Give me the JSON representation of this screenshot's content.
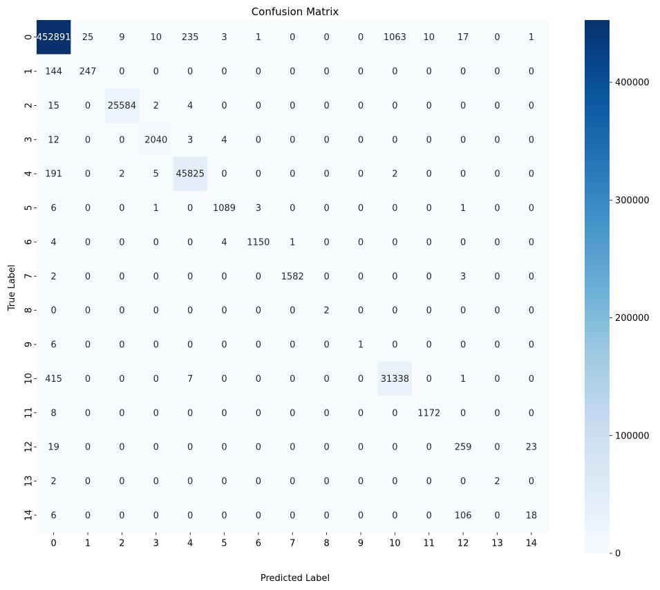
{
  "chart_data": {
    "type": "heatmap",
    "title": "Confusion Matrix",
    "xlabel": "Predicted Label",
    "ylabel": "True Label",
    "x_categories": [
      "0",
      "1",
      "2",
      "3",
      "4",
      "5",
      "6",
      "7",
      "8",
      "9",
      "10",
      "11",
      "12",
      "13",
      "14"
    ],
    "y_categories": [
      "0",
      "1",
      "2",
      "3",
      "4",
      "5",
      "6",
      "7",
      "8",
      "9",
      "10",
      "11",
      "12",
      "13",
      "14"
    ],
    "matrix": [
      [
        452891,
        25,
        9,
        10,
        235,
        3,
        1,
        0,
        0,
        0,
        1063,
        10,
        17,
        0,
        1
      ],
      [
        144,
        247,
        0,
        0,
        0,
        0,
        0,
        0,
        0,
        0,
        0,
        0,
        0,
        0,
        0
      ],
      [
        15,
        0,
        25584,
        2,
        4,
        0,
        0,
        0,
        0,
        0,
        0,
        0,
        0,
        0,
        0
      ],
      [
        12,
        0,
        0,
        2040,
        3,
        4,
        0,
        0,
        0,
        0,
        0,
        0,
        0,
        0,
        0
      ],
      [
        191,
        0,
        2,
        5,
        45825,
        0,
        0,
        0,
        0,
        0,
        2,
        0,
        0,
        0,
        0
      ],
      [
        6,
        0,
        0,
        1,
        0,
        1089,
        3,
        0,
        0,
        0,
        0,
        0,
        1,
        0,
        0
      ],
      [
        4,
        0,
        0,
        0,
        0,
        4,
        1150,
        1,
        0,
        0,
        0,
        0,
        0,
        0,
        0
      ],
      [
        2,
        0,
        0,
        0,
        0,
        0,
        0,
        1582,
        0,
        0,
        0,
        0,
        3,
        0,
        0
      ],
      [
        0,
        0,
        0,
        0,
        0,
        0,
        0,
        0,
        2,
        0,
        0,
        0,
        0,
        0,
        0
      ],
      [
        6,
        0,
        0,
        0,
        0,
        0,
        0,
        0,
        0,
        1,
        0,
        0,
        0,
        0,
        0
      ],
      [
        415,
        0,
        0,
        0,
        7,
        0,
        0,
        0,
        0,
        0,
        31338,
        0,
        1,
        0,
        0
      ],
      [
        8,
        0,
        0,
        0,
        0,
        0,
        0,
        0,
        0,
        0,
        0,
        1172,
        0,
        0,
        0
      ],
      [
        19,
        0,
        0,
        0,
        0,
        0,
        0,
        0,
        0,
        0,
        0,
        0,
        259,
        0,
        23
      ],
      [
        2,
        0,
        0,
        0,
        0,
        0,
        0,
        0,
        0,
        0,
        0,
        0,
        0,
        2,
        0
      ],
      [
        6,
        0,
        0,
        0,
        0,
        0,
        0,
        0,
        0,
        0,
        0,
        0,
        106,
        0,
        18
      ]
    ],
    "colorbar": {
      "range": [
        0,
        452891
      ],
      "ticks": [
        0,
        100000,
        200000,
        300000,
        400000
      ],
      "colormap": "Blues"
    },
    "colors": {
      "low": "#f7fbff",
      "high": "#08306b",
      "text_light": "#ffffff",
      "text_dark": "#262626"
    }
  }
}
